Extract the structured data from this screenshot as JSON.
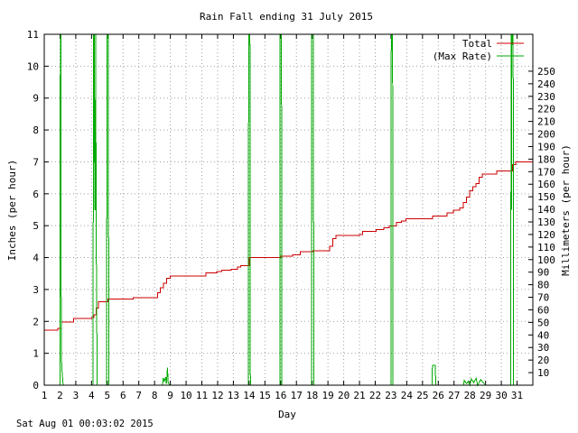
{
  "footer": "Sat Aug 01 00:03:02 2015",
  "chart_data": {
    "type": "line",
    "title": "Rain Fall ending 31 July 2015",
    "xlabel": "Day",
    "ylabel": "Inches (per hour)",
    "y2label": "Millimeters (per hour)",
    "xlim": [
      1,
      32
    ],
    "ylim": [
      0,
      11
    ],
    "y2lim": [
      0,
      279.4
    ],
    "x_ticks": [
      1,
      2,
      3,
      4,
      5,
      6,
      7,
      8,
      9,
      10,
      11,
      12,
      13,
      14,
      15,
      16,
      17,
      18,
      19,
      20,
      21,
      22,
      23,
      24,
      25,
      26,
      27,
      28,
      29,
      30,
      31
    ],
    "y_ticks": [
      0,
      1,
      2,
      3,
      4,
      5,
      6,
      7,
      8,
      9,
      10,
      11
    ],
    "y2_ticks": [
      10,
      20,
      30,
      40,
      50,
      60,
      70,
      80,
      90,
      100,
      110,
      120,
      130,
      140,
      150,
      160,
      170,
      180,
      190,
      200,
      210,
      220,
      230,
      240,
      250
    ],
    "grid": true,
    "legend_position": "top-right",
    "series": [
      {
        "name": "Total",
        "color": "#cc0000",
        "interpolation": "step",
        "points": [
          [
            1,
            1.72
          ],
          [
            1.8,
            1.72
          ],
          [
            1.85,
            1.78
          ],
          [
            2.05,
            1.78
          ],
          [
            2.1,
            1.98
          ],
          [
            2.8,
            1.98
          ],
          [
            2.85,
            2.09
          ],
          [
            3.9,
            2.09
          ],
          [
            4.0,
            2.12
          ],
          [
            4.15,
            2.2
          ],
          [
            4.3,
            2.42
          ],
          [
            4.45,
            2.62
          ],
          [
            5.0,
            2.62
          ],
          [
            5.05,
            2.7
          ],
          [
            6.6,
            2.7
          ],
          [
            6.65,
            2.74
          ],
          [
            8.1,
            2.74
          ],
          [
            8.2,
            2.9
          ],
          [
            8.35,
            3.05
          ],
          [
            8.55,
            3.2
          ],
          [
            8.75,
            3.35
          ],
          [
            9.0,
            3.42
          ],
          [
            11.2,
            3.42
          ],
          [
            11.25,
            3.52
          ],
          [
            11.9,
            3.52
          ],
          [
            11.95,
            3.56
          ],
          [
            12.2,
            3.56
          ],
          [
            12.25,
            3.6
          ],
          [
            12.8,
            3.6
          ],
          [
            12.85,
            3.64
          ],
          [
            13.2,
            3.64
          ],
          [
            13.25,
            3.7
          ],
          [
            13.4,
            3.7
          ],
          [
            13.45,
            3.75
          ],
          [
            13.95,
            3.75
          ],
          [
            14.0,
            4.0
          ],
          [
            15.9,
            4.0
          ],
          [
            16.0,
            4.04
          ],
          [
            16.7,
            4.04
          ],
          [
            16.75,
            4.08
          ],
          [
            17.2,
            4.08
          ],
          [
            17.25,
            4.18
          ],
          [
            18.0,
            4.18
          ],
          [
            18.05,
            4.22
          ],
          [
            19.0,
            4.22
          ],
          [
            19.1,
            4.35
          ],
          [
            19.3,
            4.6
          ],
          [
            19.5,
            4.7
          ],
          [
            20.95,
            4.7
          ],
          [
            21.0,
            4.72
          ],
          [
            21.15,
            4.72
          ],
          [
            21.2,
            4.82
          ],
          [
            22.0,
            4.82
          ],
          [
            22.05,
            4.88
          ],
          [
            22.5,
            4.88
          ],
          [
            22.55,
            4.93
          ],
          [
            22.85,
            4.93
          ],
          [
            22.9,
            4.99
          ],
          [
            23.3,
            4.99
          ],
          [
            23.35,
            5.1
          ],
          [
            23.6,
            5.1
          ],
          [
            23.65,
            5.14
          ],
          [
            23.9,
            5.14
          ],
          [
            23.95,
            5.22
          ],
          [
            25.6,
            5.22
          ],
          [
            25.65,
            5.3
          ],
          [
            26.5,
            5.3
          ],
          [
            26.55,
            5.4
          ],
          [
            26.9,
            5.4
          ],
          [
            26.95,
            5.48
          ],
          [
            27.2,
            5.48
          ],
          [
            27.35,
            5.55
          ],
          [
            27.6,
            5.72
          ],
          [
            27.8,
            5.9
          ],
          [
            28.0,
            6.1
          ],
          [
            28.2,
            6.22
          ],
          [
            28.4,
            6.32
          ],
          [
            28.6,
            6.52
          ],
          [
            28.8,
            6.62
          ],
          [
            29.6,
            6.62
          ],
          [
            29.7,
            6.72
          ],
          [
            30.6,
            6.72
          ],
          [
            30.7,
            6.92
          ],
          [
            30.9,
            7.0
          ],
          [
            32,
            7.0
          ]
        ]
      },
      {
        "name": "(Max Rate)",
        "color": "#00aa00",
        "interpolation": "linear",
        "points": [
          [
            1,
            0
          ],
          [
            2.0,
            0
          ],
          [
            2.02,
            11
          ],
          [
            2.05,
            11
          ],
          [
            2.08,
            1.0
          ],
          [
            2.12,
            0.5
          ],
          [
            2.2,
            0
          ],
          [
            4.1,
            0
          ],
          [
            4.12,
            11
          ],
          [
            4.18,
            11
          ],
          [
            4.2,
            5.5
          ],
          [
            4.24,
            5.5
          ],
          [
            4.26,
            11
          ],
          [
            4.3,
            4.5
          ],
          [
            4.36,
            0
          ],
          [
            4.95,
            0
          ],
          [
            4.97,
            5.5
          ],
          [
            4.99,
            11
          ],
          [
            5.06,
            11
          ],
          [
            5.1,
            0
          ],
          [
            8.5,
            0
          ],
          [
            8.55,
            0.22
          ],
          [
            8.62,
            0.12
          ],
          [
            8.7,
            0.25
          ],
          [
            8.75,
            0.05
          ],
          [
            8.82,
            0.55
          ],
          [
            8.86,
            0.1
          ],
          [
            8.95,
            0
          ],
          [
            13.95,
            0
          ],
          [
            13.97,
            11
          ],
          [
            14.05,
            11
          ],
          [
            14.08,
            0
          ],
          [
            15.95,
            0
          ],
          [
            15.97,
            11
          ],
          [
            16.05,
            11
          ],
          [
            16.08,
            0
          ],
          [
            17.95,
            0
          ],
          [
            17.97,
            11
          ],
          [
            18.08,
            11
          ],
          [
            18.1,
            0
          ],
          [
            23.0,
            0
          ],
          [
            23.02,
            11
          ],
          [
            23.1,
            11
          ],
          [
            23.13,
            0
          ],
          [
            25.6,
            0
          ],
          [
            25.63,
            0.62
          ],
          [
            25.8,
            0.62
          ],
          [
            25.85,
            0
          ],
          [
            27.6,
            0
          ],
          [
            27.65,
            0.15
          ],
          [
            27.8,
            0.05
          ],
          [
            27.9,
            0.12
          ],
          [
            28.0,
            0
          ],
          [
            28.1,
            0.2
          ],
          [
            28.25,
            0.08
          ],
          [
            28.4,
            0.22
          ],
          [
            28.5,
            0
          ],
          [
            28.7,
            0.18
          ],
          [
            28.85,
            0.08
          ],
          [
            29.0,
            0
          ],
          [
            30.6,
            0
          ],
          [
            30.62,
            11
          ],
          [
            30.64,
            5.5
          ],
          [
            30.67,
            11
          ],
          [
            30.75,
            11
          ],
          [
            30.78,
            0
          ],
          [
            32,
            0
          ]
        ]
      }
    ]
  }
}
